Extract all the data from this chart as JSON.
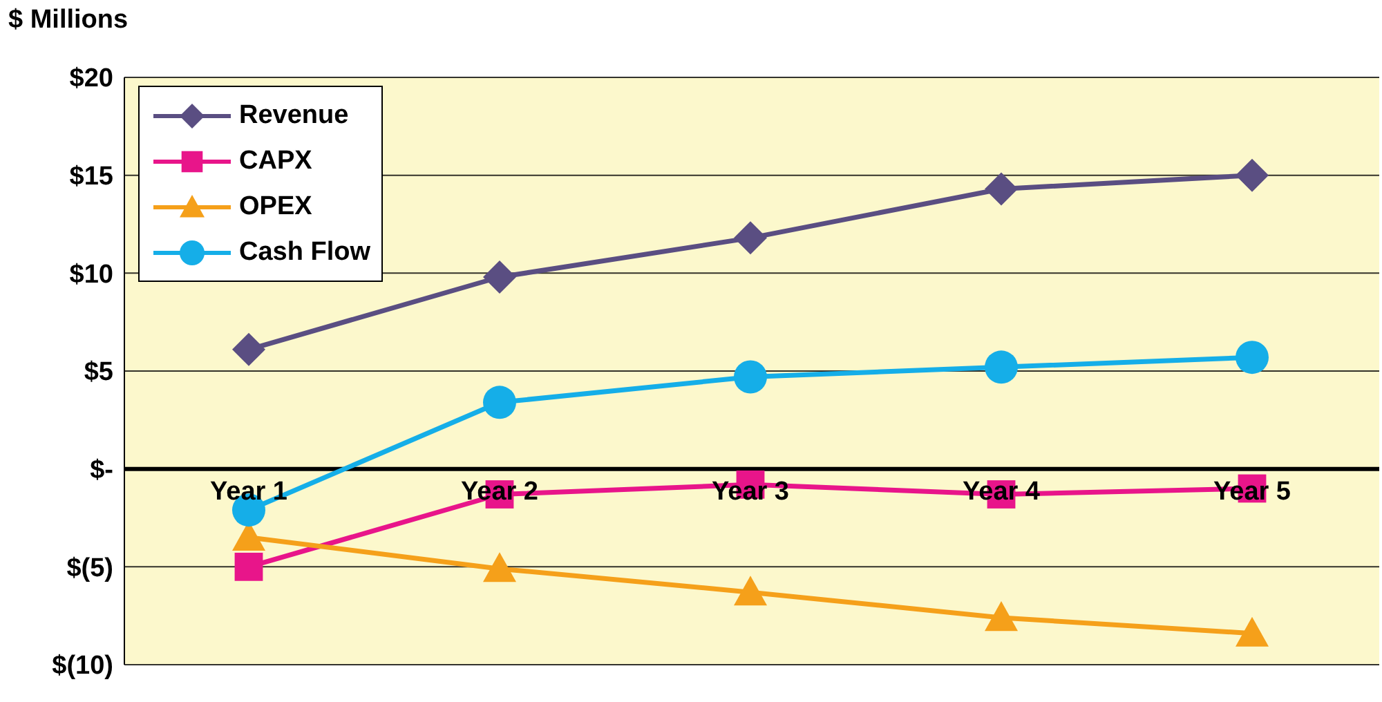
{
  "chart_data": {
    "type": "line",
    "ylabel": "$ Millions",
    "categories": [
      "Year 1",
      "Year 2",
      "Year 3",
      "Year 4",
      "Year 5"
    ],
    "series": [
      {
        "name": "Revenue",
        "color": "#5a4e82",
        "marker": "diamond",
        "values": [
          6.1,
          9.8,
          11.8,
          14.3,
          15.0
        ]
      },
      {
        "name": "CAPX",
        "color": "#e8158a",
        "marker": "square",
        "values": [
          -5.0,
          -1.3,
          -0.8,
          -1.3,
          -1.0
        ]
      },
      {
        "name": "OPEX",
        "color": "#f5a01a",
        "marker": "triangle",
        "values": [
          -3.5,
          -5.1,
          -6.3,
          -7.6,
          -8.4
        ]
      },
      {
        "name": "Cash Flow",
        "color": "#15aee8",
        "marker": "circle",
        "values": [
          -2.1,
          3.4,
          4.7,
          5.2,
          5.7
        ]
      }
    ],
    "ylim": [
      -10,
      20
    ],
    "yticks": [
      {
        "value": -10,
        "label": "$(10)"
      },
      {
        "value": -5,
        "label": "$(5)"
      },
      {
        "value": 0,
        "label": "$-"
      },
      {
        "value": 5,
        "label": "$5"
      },
      {
        "value": 10,
        "label": "$10"
      },
      {
        "value": 15,
        "label": "$15"
      },
      {
        "value": 20,
        "label": "$20"
      }
    ],
    "grid": "y",
    "legend": "top left",
    "line_style": "solid"
  }
}
